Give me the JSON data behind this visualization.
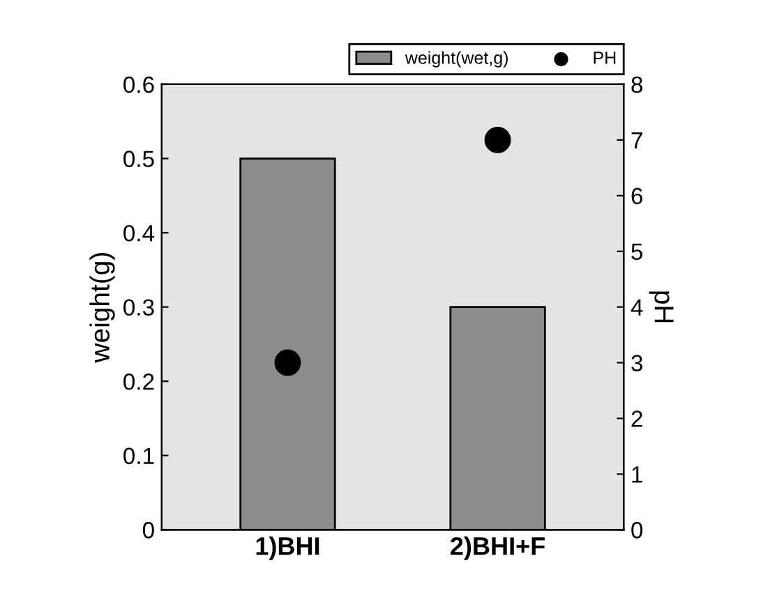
{
  "chart_data": {
    "type": "bar",
    "categories": [
      "1)BHI",
      "2)BHI+F"
    ],
    "ylabel": "weight(g)",
    "y2label": "pH",
    "series": [
      {
        "name": "weight(wet,g)",
        "color": "#8c8c8c",
        "values": [
          0.5,
          0.3
        ]
      },
      {
        "name": "PH",
        "type": "scatter",
        "axis": "y2",
        "color": "#000000",
        "marker": "circle",
        "values": [
          3,
          7
        ]
      }
    ],
    "ylim": [
      0,
      0.6
    ],
    "yticks": [
      0,
      0.1,
      0.2,
      0.3,
      0.4,
      0.5,
      0.6
    ],
    "y2lim": [
      0,
      8
    ],
    "y2ticks": [
      0,
      1,
      2,
      3,
      4,
      5,
      6,
      7,
      8
    ],
    "legend": "top right"
  }
}
